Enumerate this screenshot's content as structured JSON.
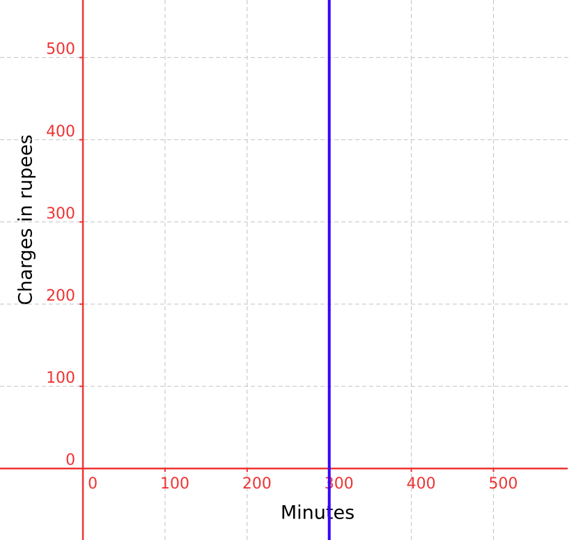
{
  "chart_data": {
    "type": "line",
    "x_label": "Minutes",
    "y_label": "Charges in rupees",
    "series": [
      {
        "color": "#3300ff",
        "x": [
          300,
          300
        ],
        "values": [
          -87,
          570
        ]
      }
    ],
    "xlim": [
      -101,
      592
    ],
    "ylim": [
      -87,
      570
    ],
    "xticks": [
      0,
      100,
      200,
      300,
      400,
      500
    ],
    "yticks": [
      0,
      100,
      200,
      300,
      400,
      500
    ],
    "grid": true,
    "axis_color": "#ee3333"
  }
}
